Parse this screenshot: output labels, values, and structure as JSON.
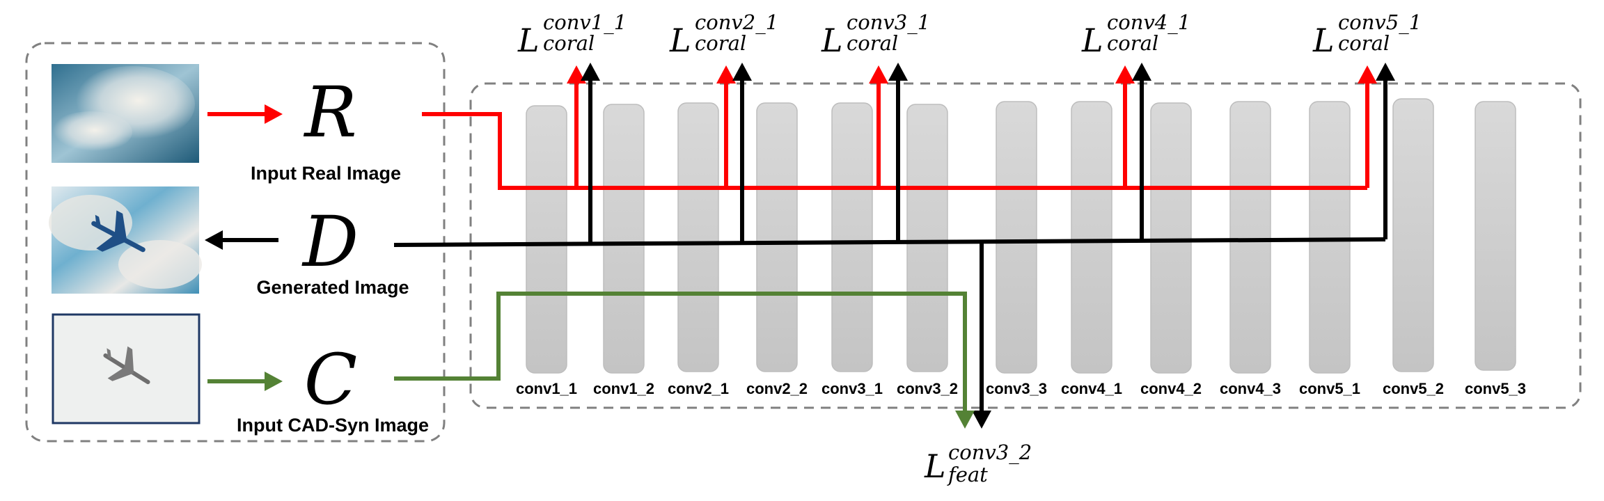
{
  "inputs": [
    {
      "symbol": "R",
      "caption": "Input Real Image",
      "arrow_color": "#ff0000"
    },
    {
      "symbol": "D",
      "caption": "Generated Image",
      "arrow_color": "#000000"
    },
    {
      "symbol": "C",
      "caption": "Input CAD-Syn Image",
      "arrow_color": "#548235"
    }
  ],
  "layers": [
    "conv1_1",
    "conv1_2",
    "conv2_1",
    "conv2_2",
    "conv3_1",
    "conv3_2",
    "conv3_3",
    "conv4_1",
    "conv4_2",
    "conv4_3",
    "conv5_1",
    "conv5_2",
    "conv5_3"
  ],
  "coral_losses": [
    {
      "base": "L",
      "sup": "conv1_1",
      "sub": "coral"
    },
    {
      "base": "L",
      "sup": "conv2_1",
      "sub": "coral"
    },
    {
      "base": "L",
      "sup": "conv3_1",
      "sub": "coral"
    },
    {
      "base": "L",
      "sup": "conv4_1",
      "sub": "coral"
    },
    {
      "base": "L",
      "sup": "conv5_1",
      "sub": "coral"
    }
  ],
  "feat_loss": {
    "base": "L",
    "sup": "conv3_2",
    "sub": "feat"
  },
  "colors": {
    "real": "#ff0000",
    "generated": "#000000",
    "cad": "#548235",
    "layer": "#cccccc",
    "dash": "#808080"
  }
}
